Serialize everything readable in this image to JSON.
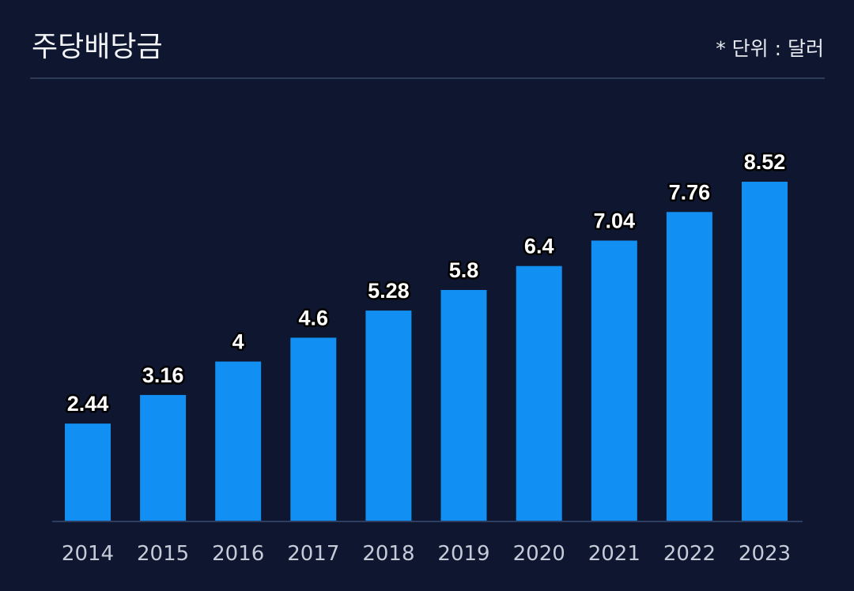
{
  "header": {
    "title": "주당배당금",
    "unit_note": "* 단위 : 달러"
  },
  "colors": {
    "background": "#0e1630",
    "bar": "#118ff2",
    "divider": "#2e3b57",
    "baseline": "#2e3e61"
  },
  "chart_data": {
    "type": "bar",
    "title": "주당배당금",
    "xlabel": "",
    "ylabel": "",
    "categories": [
      "2014",
      "2015",
      "2016",
      "2017",
      "2018",
      "2019",
      "2020",
      "2021",
      "2022",
      "2023"
    ],
    "values": [
      2.44,
      3.16,
      4,
      4.6,
      5.28,
      5.8,
      6.4,
      7.04,
      7.76,
      8.52
    ],
    "value_labels": [
      "2.44",
      "3.16",
      "4",
      "4.6",
      "5.28",
      "5.8",
      "6.4",
      "7.04",
      "7.76",
      "8.52"
    ],
    "ylim": [
      0,
      8.52
    ],
    "grid": false,
    "legend": "none"
  }
}
